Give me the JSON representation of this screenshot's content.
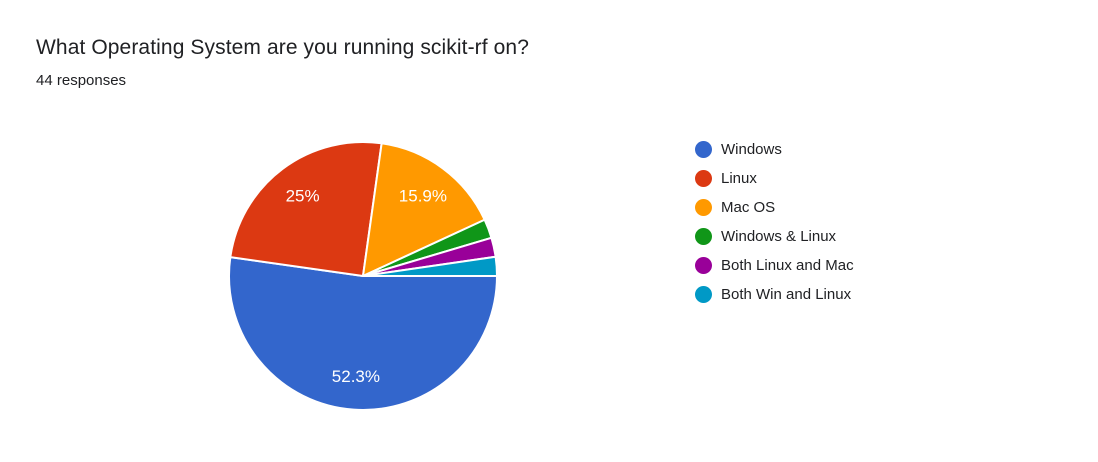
{
  "page": {
    "background_color": "#ffffff"
  },
  "header": {
    "title": "What Operating System are you running scikit-rf on?",
    "response_count": "44 responses"
  },
  "chart_data": {
    "type": "pie",
    "title": "What Operating System are you running scikit-rf on?",
    "subtitle": "44 responses",
    "total_responses": 44,
    "categories": [
      "Windows",
      "Linux",
      "Mac OS",
      "Windows & Linux",
      "Both Linux and Mac",
      "Both Win and Linux"
    ],
    "values": [
      52.3,
      25,
      15.9,
      2.3,
      2.3,
      2.3
    ],
    "unit": "%",
    "slice_labels": [
      "52.3%",
      "25%",
      "15.9%",
      "",
      "",
      ""
    ],
    "colors": [
      "#3366cc",
      "#dc3912",
      "#ff9900",
      "#109618",
      "#990099",
      "#0099c6"
    ],
    "legend_position": "right",
    "slice_border_color": "#ffffff",
    "label_text_color": "#ffffff"
  }
}
